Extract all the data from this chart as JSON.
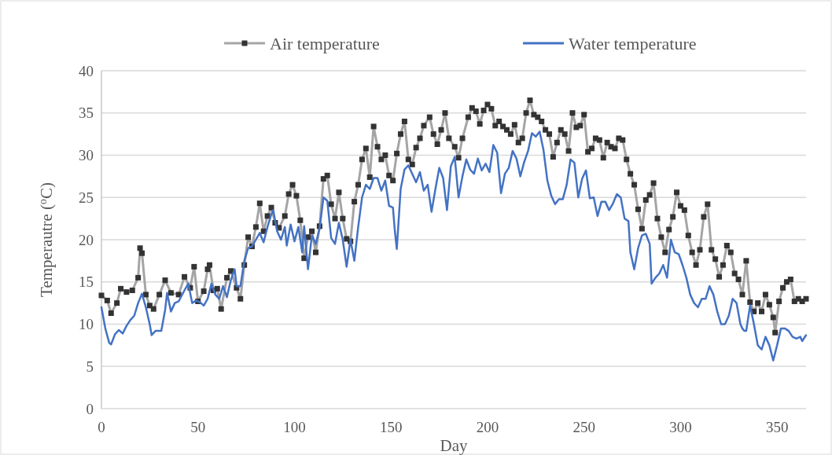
{
  "chart_data": {
    "type": "line",
    "xlabel": "Day",
    "ylabel": "Temperautre ($^{o}$C)",
    "xlim": [
      0,
      365
    ],
    "xticks": [
      0,
      50,
      100,
      150,
      200,
      250,
      300,
      350
    ],
    "ylim": [
      0,
      40
    ],
    "yticks": [
      0,
      5,
      10,
      15,
      20,
      25,
      30,
      35,
      40
    ],
    "grid": "y",
    "legend": "top",
    "line_style": "solid",
    "series": [
      {
        "name": "Air temperature",
        "color": "#a5a5a5",
        "marker": "square",
        "x": [
          0,
          3,
          5,
          8,
          10,
          13,
          16,
          19,
          20,
          21,
          23,
          25,
          27,
          30,
          33,
          36,
          40,
          43,
          46,
          48,
          50,
          53,
          55,
          56,
          58,
          60,
          62,
          65,
          67,
          70,
          72,
          74,
          76,
          78,
          80,
          82,
          84,
          86,
          88,
          90,
          92,
          95,
          97,
          99,
          101,
          103,
          105,
          107,
          109,
          111,
          113,
          115,
          117,
          119,
          121,
          123,
          125,
          127,
          129,
          131,
          133,
          135,
          137,
          139,
          141,
          143,
          145,
          147,
          149,
          151,
          153,
          155,
          157,
          159,
          161,
          163,
          165,
          167,
          170,
          172,
          174,
          176,
          178,
          180,
          183,
          185,
          187,
          190,
          192,
          194,
          196,
          198,
          200,
          202,
          204,
          206,
          208,
          210,
          212,
          214,
          216,
          218,
          220,
          222,
          224,
          226,
          228,
          230,
          232,
          234,
          236,
          238,
          240,
          242,
          244,
          246,
          248,
          250,
          252,
          254,
          256,
          258,
          260,
          262,
          264,
          266,
          268,
          270,
          272,
          274,
          276,
          278,
          280,
          282,
          284,
          286,
          288,
          290,
          292,
          294,
          296,
          298,
          300,
          302,
          304,
          306,
          308,
          310,
          312,
          314,
          316,
          318,
          320,
          322,
          324,
          326,
          328,
          330,
          332,
          334,
          336,
          338,
          340,
          342,
          344,
          346,
          348,
          349,
          351,
          353,
          355,
          357,
          359,
          361,
          363,
          365
        ],
        "values": [
          13.4,
          12.8,
          11.3,
          12.5,
          14.2,
          13.8,
          14,
          15.5,
          19,
          18.4,
          13.5,
          12.2,
          11.8,
          13.5,
          15.2,
          13.7,
          13.5,
          15.6,
          14.3,
          16.8,
          12.7,
          13.9,
          16.5,
          17,
          14,
          14.2,
          11.8,
          15.5,
          16.3,
          14.3,
          13,
          17,
          20.3,
          19.2,
          21.5,
          24.3,
          21,
          22.8,
          23.8,
          22,
          21.4,
          22.8,
          25.4,
          26.5,
          25.2,
          22.3,
          17.8,
          20.3,
          21,
          18.5,
          21.6,
          27.2,
          27.6,
          24.2,
          22.5,
          25.6,
          22.5,
          20.1,
          19.8,
          24.5,
          26.5,
          29.5,
          30.8,
          27.4,
          33.4,
          31,
          29.5,
          30,
          27.6,
          27,
          30.2,
          32.5,
          34,
          29.5,
          28.9,
          30.9,
          32,
          33.5,
          34.5,
          32.5,
          31.3,
          33,
          35,
          32,
          31,
          29.7,
          32,
          34.5,
          35.6,
          35.2,
          33.7,
          35.3,
          36,
          35.5,
          33.5,
          34,
          33.4,
          33,
          32.5,
          33.6,
          31.5,
          32,
          35,
          36.5,
          34.8,
          34.5,
          34,
          33,
          32.5,
          29.8,
          31.5,
          33,
          32.5,
          30.5,
          35,
          33.3,
          33.5,
          34.8,
          30.4,
          30.8,
          32,
          31.8,
          29.7,
          31.5,
          31,
          30.8,
          32,
          31.8,
          29.5,
          27.8,
          26.5,
          23.6,
          21.3,
          24.7,
          25.3,
          26.7,
          22.5,
          20.3,
          18.5,
          21.2,
          22.7,
          25.6,
          24,
          23.5,
          20.5,
          18.5,
          17,
          18.8,
          22.7,
          24.2,
          18.8,
          17.7,
          15.6,
          17,
          19.3,
          18.5,
          16,
          15.3,
          13.5,
          17.5,
          12.6,
          11.5,
          12.5,
          11.5,
          13.5,
          12.3,
          10.8,
          9,
          12.7,
          14.3,
          15,
          15.3,
          12.7,
          13,
          12.7,
          13
        ]
      },
      {
        "name": "Water temperature",
        "color": "#4472c4",
        "marker": "none",
        "x": [
          0,
          2,
          4,
          5,
          7,
          9,
          11,
          13,
          15,
          17,
          19,
          21,
          23,
          25,
          26,
          28,
          31,
          33,
          34,
          36,
          38,
          40,
          43,
          45,
          47,
          49,
          51,
          53,
          55,
          57,
          59,
          61,
          63,
          65,
          67,
          69,
          70,
          72,
          74,
          76,
          78,
          80,
          82,
          84,
          86,
          88,
          89,
          91,
          93,
          95,
          96,
          98,
          100,
          102,
          104,
          105,
          107,
          109,
          111,
          113,
          115,
          117,
          119,
          121,
          123,
          125,
          127,
          129,
          131,
          133,
          135,
          137,
          139,
          141,
          143,
          145,
          147,
          149,
          151,
          152,
          153,
          155,
          157,
          159,
          161,
          163,
          165,
          167,
          169,
          171,
          173,
          175,
          177,
          179,
          181,
          183,
          185,
          187,
          189,
          191,
          193,
          195,
          197,
          199,
          201,
          203,
          205,
          207,
          209,
          211,
          213,
          215,
          217,
          219,
          221,
          223,
          225,
          227,
          229,
          231,
          233,
          235,
          237,
          239,
          241,
          243,
          245,
          247,
          249,
          251,
          253,
          255,
          257,
          259,
          261,
          263,
          265,
          267,
          269,
          271,
          273,
          274,
          276,
          278,
          280,
          282,
          284,
          285,
          287,
          289,
          291,
          293,
          295,
          297,
          299,
          301,
          303,
          305,
          307,
          309,
          311,
          313,
          315,
          317,
          319,
          321,
          323,
          325,
          327,
          329,
          331,
          332,
          333,
          334,
          336,
          338,
          340,
          342,
          344,
          346,
          348,
          350,
          352,
          354,
          356,
          358,
          360,
          362,
          363,
          365
        ],
        "values": [
          12,
          9.5,
          7.8,
          7.6,
          8.8,
          9.3,
          8.9,
          9.8,
          10.5,
          11,
          12.5,
          13.6,
          12,
          10,
          8.7,
          9.2,
          9.2,
          11.7,
          13.7,
          11.5,
          12.5,
          12.7,
          14,
          14.8,
          12.5,
          12.8,
          12.6,
          12.2,
          13,
          14.8,
          13.5,
          13,
          14.5,
          13.2,
          15.2,
          16.5,
          14.5,
          14.5,
          17.5,
          19,
          19.2,
          20,
          20.8,
          19.7,
          21.5,
          23,
          23.5,
          21,
          20,
          21.5,
          19.3,
          21.8,
          19.8,
          21.5,
          18.5,
          21.6,
          16.5,
          20.5,
          19.5,
          21.3,
          25,
          24.6,
          20.2,
          19.5,
          22,
          20,
          16.8,
          20,
          17.5,
          21.5,
          25,
          26.5,
          26,
          27.3,
          27.3,
          25.8,
          27,
          24,
          23.8,
          21,
          18.9,
          26,
          28.3,
          28.8,
          27.8,
          26.8,
          28,
          25.8,
          26.5,
          23.3,
          26,
          28.5,
          27.3,
          23.5,
          28.7,
          29.8,
          25,
          27.5,
          29.5,
          28.3,
          27.8,
          29.6,
          28.2,
          29,
          28,
          31.2,
          30.3,
          25.5,
          27.8,
          28.5,
          30.5,
          29.6,
          27.5,
          29.2,
          30.5,
          32.6,
          32.2,
          32.8,
          30.6,
          27,
          25.2,
          24.2,
          24.8,
          24.8,
          26.5,
          29.5,
          29.1,
          25,
          27.2,
          28.2,
          24.9,
          25,
          22.8,
          24.5,
          24.5,
          23.5,
          24.3,
          25.4,
          25,
          22.5,
          22.2,
          18.5,
          16.5,
          19,
          20.5,
          20.7,
          19.5,
          14.8,
          15.5,
          16,
          17,
          15.5,
          20,
          18.5,
          18.3,
          17,
          15.5,
          13.5,
          12.5,
          12,
          13,
          13,
          14.5,
          13.5,
          11.5,
          10,
          10,
          11,
          13,
          12.5,
          10,
          9.5,
          9.2,
          9.2,
          12.2,
          10,
          7.5,
          7,
          8.5,
          7.5,
          5.7,
          7.5,
          9.5,
          9.5,
          9.2,
          8.5,
          8.3,
          8.5,
          8,
          8.7
        ]
      }
    ]
  }
}
